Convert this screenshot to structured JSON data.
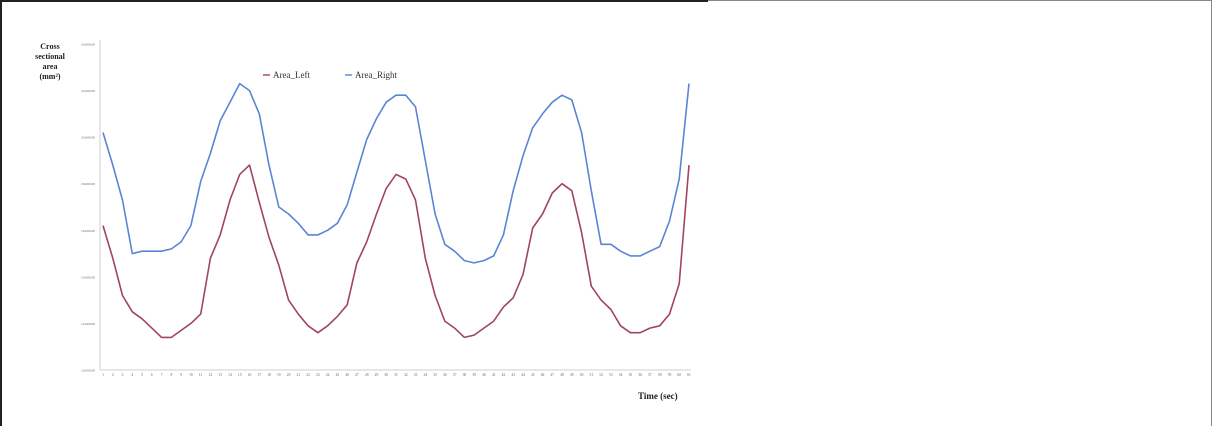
{
  "chart_data": {
    "type": "line",
    "ylabel": "Cross\nsectional\narea\n(mm²)",
    "xlabel": "Time (sec)",
    "ylim": [
      10000,
      24000
    ],
    "yticks": [
      10000,
      12000,
      14000,
      16000,
      18000,
      20000,
      22000,
      24000
    ],
    "ytick_labels": [
      "10,000.00",
      "12,000.00",
      "14,000.00",
      "16,000.00",
      "18,000.00",
      "20,000.00",
      "22,000.00",
      "24,000.00"
    ],
    "x": [
      1,
      2,
      3,
      4,
      5,
      6,
      7,
      8,
      9,
      10,
      11,
      12,
      13,
      14,
      15,
      16,
      17,
      18,
      19,
      20,
      21,
      22,
      23,
      24,
      25,
      26,
      27,
      28,
      29,
      30,
      31,
      32,
      33,
      34,
      35,
      36,
      37,
      38,
      39,
      40,
      41,
      42,
      43,
      44,
      45,
      46,
      47,
      48,
      49,
      50,
      51,
      52,
      53,
      54,
      55,
      56,
      57,
      58,
      59,
      60,
      61
    ],
    "legend_position": "top",
    "grid": false,
    "series": [
      {
        "name": "Area_Left",
        "color": "#a0455f",
        "values": [
          16200,
          14800,
          13200,
          12500,
          12200,
          11800,
          11400,
          11400,
          11700,
          12000,
          12400,
          14800,
          15800,
          17300,
          18400,
          18800,
          17200,
          15700,
          14500,
          13000,
          12400,
          11900,
          11600,
          11900,
          12300,
          12800,
          14600,
          15500,
          16700,
          17800,
          18400,
          18200,
          17300,
          14800,
          13200,
          12100,
          11800,
          11400,
          11500,
          11800,
          12100,
          12700,
          13100,
          14100,
          16100,
          16700,
          17600,
          18000,
          17700,
          15900,
          13600,
          13000,
          12600,
          11900,
          11600,
          11600,
          11800,
          11900,
          12400,
          13700,
          18800
        ]
      },
      {
        "name": "Area_Right",
        "color": "#5a85d4",
        "values": [
          20200,
          18800,
          17300,
          15000,
          15100,
          15100,
          15100,
          15200,
          15500,
          16200,
          18100,
          19300,
          20700,
          21500,
          22300,
          22000,
          21000,
          18800,
          17000,
          16700,
          16300,
          15800,
          15800,
          16000,
          16300,
          17100,
          18500,
          19900,
          20800,
          21500,
          21800,
          21800,
          21300,
          19000,
          16700,
          15400,
          15100,
          14700,
          14600,
          14700,
          14900,
          15800,
          17700,
          19200,
          20400,
          21000,
          21500,
          21800,
          21600,
          20200,
          17700,
          15400,
          15400,
          15100,
          14900,
          14900,
          15100,
          15300,
          16400,
          18200,
          22300
        ]
      }
    ]
  }
}
